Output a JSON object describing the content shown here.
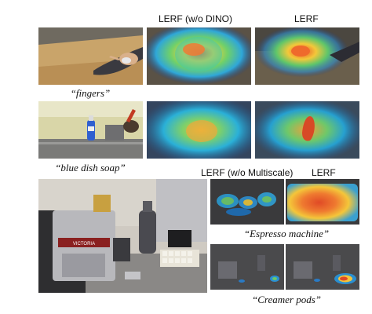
{
  "headers": {
    "lerf_wo_dino": "LERF (w/o DINO)",
    "lerf_top": "LERF",
    "lerf_wo_multiscale": "LERF (w/o Multiscale)",
    "lerf_bottom": "LERF"
  },
  "captions": {
    "fingers": "“fingers”",
    "blue_dish_soap": "“blue dish soap”",
    "espresso_machine": "“Espresso machine”",
    "creamer_pods": "“Creamer pods”"
  },
  "image_labels": {
    "bottle_label": "DAWN",
    "machine_label": "VICTORIA"
  }
}
